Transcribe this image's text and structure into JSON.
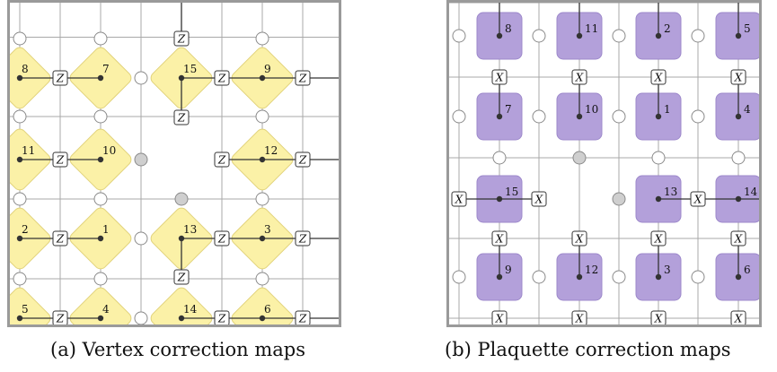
{
  "figure": {
    "caption_a": "(a) Vertex correction maps",
    "caption_b": "(b) Plaquette correction maps"
  },
  "colors": {
    "frame": "#9a9a9a",
    "grid": "#a8a8a8",
    "vertex_fill": "#fbf1a7",
    "vertex_stroke": "#e1d27a",
    "plaquette_fill": "#b3a0da",
    "plaquette_stroke": "#9d89cb",
    "special_qubit": "#cfcfcf"
  },
  "panel_a": {
    "gate_label": "Z",
    "diamond_labels": [
      "8",
      "7",
      "15",
      "9",
      "11",
      "10",
      "12",
      "2",
      "1",
      "13",
      "3",
      "5",
      "4",
      "14",
      "6"
    ]
  },
  "panel_b": {
    "gate_label": "X",
    "square_labels": [
      "8",
      "11",
      "2",
      "5",
      "7",
      "10",
      "1",
      "4",
      "15",
      "13",
      "14",
      "9",
      "12",
      "3",
      "6"
    ]
  }
}
